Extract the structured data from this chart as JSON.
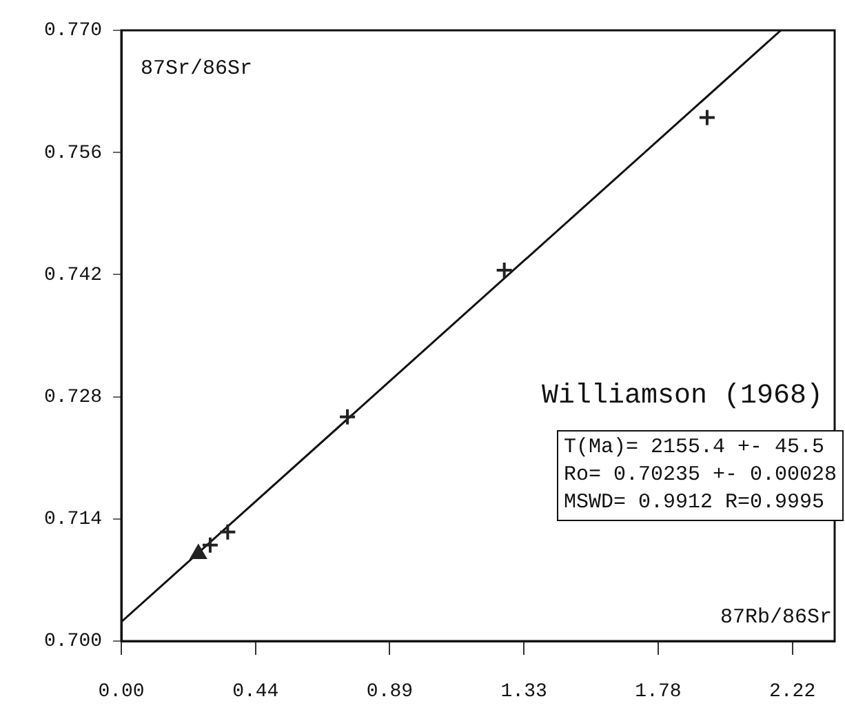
{
  "chart_data": {
    "type": "scatter",
    "title": "Williamson (1968)",
    "xlabel": "87Rb/86Sr",
    "ylabel": "87Sr/86Sr",
    "annotations": [
      "T(Ma)= 2155.4 +- 45.5",
      "Ro= 0.70235 +- 0.00028",
      "MSWD= 0.9912 R=0.9995"
    ],
    "xlim": [
      0,
      2.36
    ],
    "ylim": [
      0.7,
      0.77
    ],
    "xticks": [
      {
        "value": 0,
        "label": "0.00"
      },
      {
        "value": 0.444,
        "label": "0.44"
      },
      {
        "value": 0.888,
        "label": "0.89"
      },
      {
        "value": 1.332,
        "label": "1.33"
      },
      {
        "value": 1.776,
        "label": "1.78"
      },
      {
        "value": 2.22,
        "label": "2.22"
      }
    ],
    "yticks": [
      {
        "value": 0.7,
        "label": "0.700"
      },
      {
        "value": 0.714,
        "label": "0.714"
      },
      {
        "value": 0.728,
        "label": "0.728"
      },
      {
        "value": 0.742,
        "label": "0.742"
      },
      {
        "value": 0.756,
        "label": "0.756"
      },
      {
        "value": 0.77,
        "label": "0.770"
      }
    ],
    "grid": false,
    "legend": false,
    "series": [
      {
        "marker": "triangle",
        "color": "#222222",
        "x": [
          0.255
        ],
        "values": [
          0.71
        ]
      },
      {
        "marker": "cross",
        "color": "#222222",
        "x": [
          0.294,
          0.352,
          0.748
        ],
        "values": [
          0.711,
          0.7125,
          0.7257
        ]
      },
      {
        "marker": "cross",
        "color": "#222222",
        "x": [
          1.267,
          1.938
        ],
        "values": [
          0.7425,
          0.76
        ]
      },
      {
        "type": "line",
        "marker": "none",
        "color": "#111111",
        "x": [
          0,
          2.182
        ],
        "values": [
          0.7022,
          0.77
        ]
      }
    ]
  }
}
